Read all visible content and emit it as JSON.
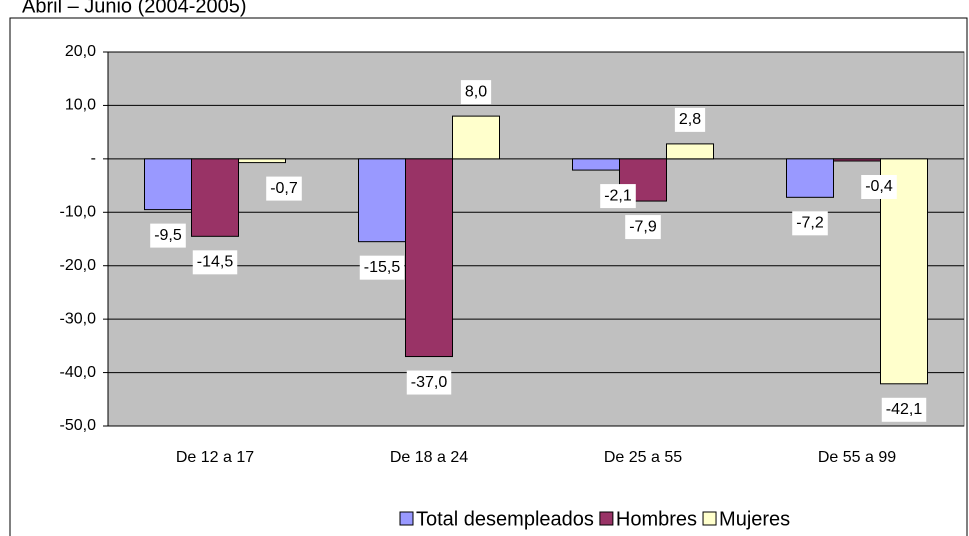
{
  "chart_data": {
    "type": "bar",
    "title": "Abril – Junio (2004-2005)",
    "categories": [
      "De 12 a 17",
      "De 18 a 24",
      "De 25 a 55",
      "De 55 a 99"
    ],
    "series": [
      {
        "name": "Total desempleados",
        "color": "#9999ff",
        "values": [
          -9.5,
          -15.5,
          -2.1,
          -7.2
        ],
        "value_labels": [
          "-9,5",
          "-15,5",
          "-2,1",
          "-7,2"
        ]
      },
      {
        "name": "Hombres",
        "color": "#993366",
        "values": [
          -14.5,
          -37.0,
          -7.9,
          -0.4
        ],
        "value_labels": [
          "-14,5",
          "-37,0",
          "-7,9",
          "-0,4"
        ]
      },
      {
        "name": "Mujeres",
        "color": "#ffffcc",
        "values": [
          -0.7,
          8.0,
          2.8,
          -42.1
        ],
        "value_labels": [
          "-0,7",
          "8,0",
          "2,8",
          "-42,1"
        ]
      }
    ],
    "ylim": [
      -50,
      20
    ],
    "yticks": [
      {
        "value": -50,
        "label": "-50,0"
      },
      {
        "value": -40,
        "label": "-40,0"
      },
      {
        "value": -30,
        "label": "-30,0"
      },
      {
        "value": -20,
        "label": "-20,0"
      },
      {
        "value": -10,
        "label": "-10,0"
      },
      {
        "value": 0,
        "label": "-"
      },
      {
        "value": 10,
        "label": "10,0"
      },
      {
        "value": 20,
        "label": "20,0"
      }
    ],
    "grid": true,
    "legend": "bottom"
  }
}
